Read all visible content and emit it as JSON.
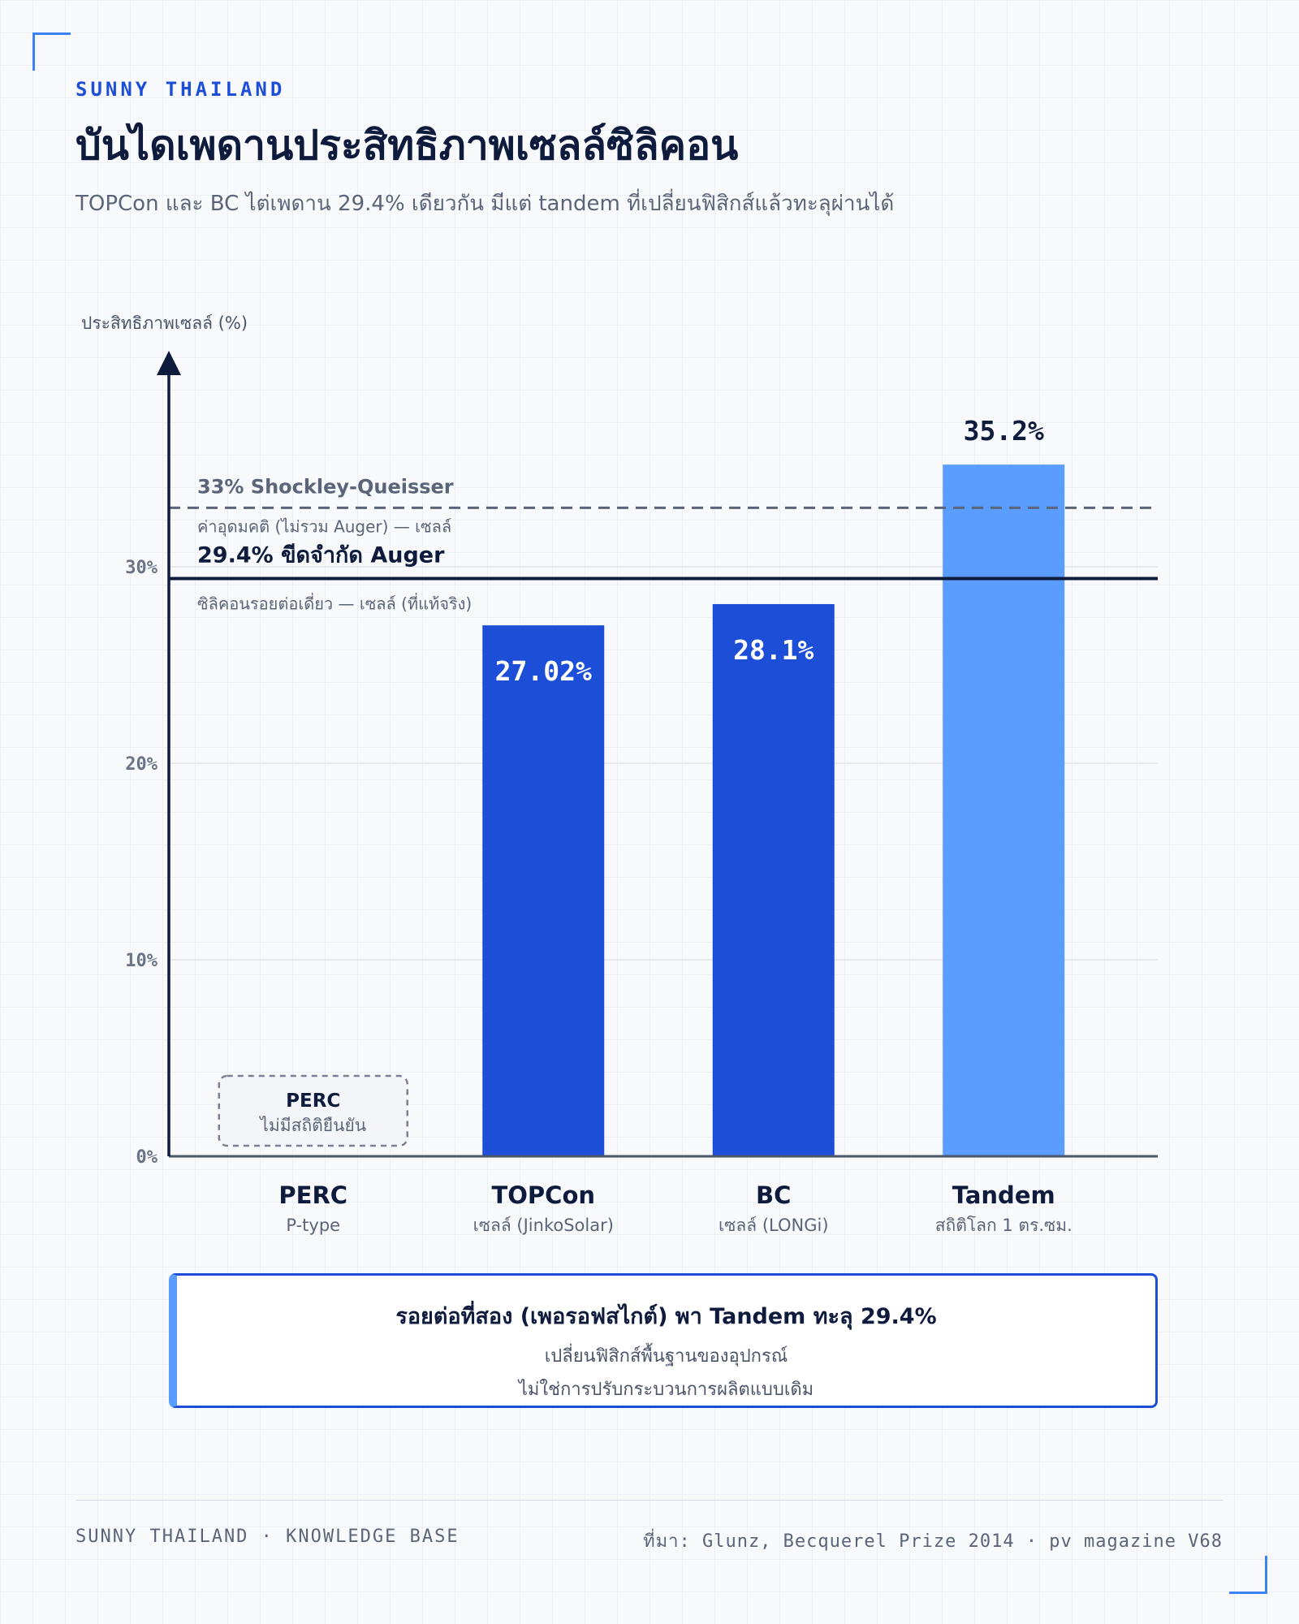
{
  "header": {
    "brand": "SUNNY THAILAND",
    "title": "บันไดเพดานประสิทธิภาพเซลล์ซิลิคอน",
    "subtitle": "TOPCon และ BC ไต่เพดาน 29.4% เดียวกัน มีแต่ tandem ที่เปลี่ยนฟิสิกส์แล้วทะลุผ่านได้"
  },
  "chart_data": {
    "type": "bar",
    "ylabel": "ประสิทธิภาพเซลล์ (%)",
    "ylim": [
      0,
      36.5
    ],
    "yticks": [
      0,
      10,
      20,
      30
    ],
    "ytick_labels": [
      "0%",
      "10%",
      "20%",
      "30%"
    ],
    "grid": true,
    "categories": [
      {
        "name": "PERC",
        "sublabel": "P-type"
      },
      {
        "name": "TOPCon",
        "sublabel": "เซลล์ (JinkoSolar)"
      },
      {
        "name": "BC",
        "sublabel": "เซลล์ (LONGi)"
      },
      {
        "name": "Tandem",
        "sublabel": "สถิติโลก 1 ตร.ซม."
      }
    ],
    "values": [
      null,
      27.02,
      28.1,
      35.2
    ],
    "value_labels": [
      "",
      "27.02%",
      "28.1%",
      "35.2%"
    ],
    "bar_colors": [
      "",
      "#1d4ed8",
      "#1d4ed8",
      "#5b9dff"
    ],
    "missing_note": {
      "title": "PERC",
      "text": "ไม่มีสถิติยืนยัน"
    },
    "reference_lines": [
      {
        "value": 33,
        "style": "dashed",
        "label": "33% Shockley-Queisser",
        "sublabel": "ค่าอุดมคติ (ไม่รวม Auger) — เซลล์"
      },
      {
        "value": 29.4,
        "style": "solid",
        "label": "29.4% ขีดจำกัด Auger",
        "sublabel": "ซิลิคอนรอยต่อเดี่ยว — เซลล์ (ที่แท้จริง)"
      }
    ]
  },
  "callout": {
    "title": "รอยต่อที่สอง (เพอรอฟสไกต์) พา Tandem ทะลุ 29.4%",
    "line1": "เปลี่ยนฟิสิกส์พื้นฐานของอุปกรณ์",
    "line2": "ไม่ใช่การปรับกระบวนการผลิตแบบเดิม"
  },
  "footer": {
    "left": "SUNNY THAILAND · KNOWLEDGE BASE",
    "right": "ที่มา: Glunz, Becquerel Prize 2014 · pv magazine V68"
  },
  "colors": {
    "navy": "#0f1b3d",
    "blue": "#1d4ed8",
    "light_blue": "#5b9dff",
    "muted": "#5b6478"
  }
}
